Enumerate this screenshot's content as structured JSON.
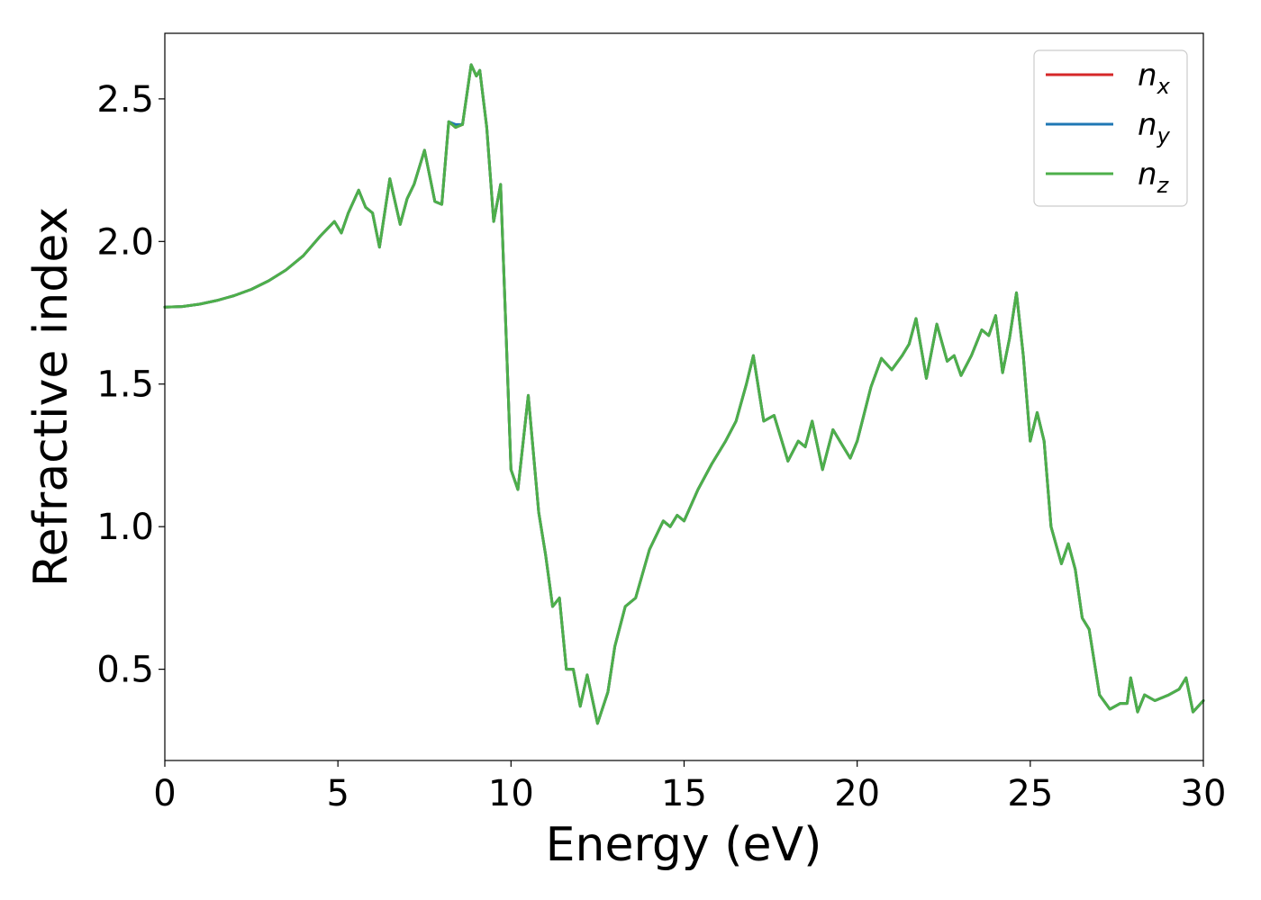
{
  "chart_data": {
    "type": "line",
    "xlabel": "Energy (eV)",
    "ylabel": "Refractive index",
    "xlim": [
      0,
      30
    ],
    "ylim": [
      0.18,
      2.73
    ],
    "xticks": [
      "0",
      "5",
      "10",
      "15",
      "20",
      "25",
      "30"
    ],
    "yticks": [
      "0.5",
      "1.0",
      "1.5",
      "2.0",
      "2.5"
    ],
    "grid": false,
    "legend_position": "top-right",
    "legend": [
      {
        "label": "n",
        "subscript": "x",
        "color": "#d62728"
      },
      {
        "label": "n",
        "subscript": "y",
        "color": "#1f77b4"
      },
      {
        "label": "n",
        "subscript": "z",
        "color": "#4daf4a"
      }
    ],
    "x": [
      0,
      0.5,
      1,
      1.5,
      2,
      2.5,
      3,
      3.5,
      4,
      4.5,
      4.9,
      5.1,
      5.3,
      5.6,
      5.8,
      6.0,
      6.2,
      6.5,
      6.8,
      7.0,
      7.2,
      7.5,
      7.8,
      8.0,
      8.2,
      8.4,
      8.6,
      8.85,
      9.0,
      9.1,
      9.3,
      9.5,
      9.7,
      9.85,
      10.0,
      10.2,
      10.5,
      10.8,
      11.0,
      11.2,
      11.4,
      11.6,
      11.8,
      12.0,
      12.2,
      12.5,
      12.8,
      13.0,
      13.3,
      13.6,
      14.0,
      14.4,
      14.6,
      14.8,
      15.0,
      15.4,
      15.8,
      16.2,
      16.5,
      16.8,
      17.0,
      17.3,
      17.6,
      18.0,
      18.3,
      18.5,
      18.7,
      19.0,
      19.3,
      19.6,
      19.8,
      20.0,
      20.4,
      20.7,
      21.0,
      21.3,
      21.5,
      21.7,
      22.0,
      22.3,
      22.6,
      22.8,
      23.0,
      23.3,
      23.6,
      23.8,
      24.0,
      24.2,
      24.4,
      24.6,
      24.8,
      25.0,
      25.2,
      25.4,
      25.6,
      25.9,
      26.1,
      26.3,
      26.5,
      26.7,
      27.0,
      27.3,
      27.6,
      27.8,
      27.9,
      28.1,
      28.3,
      28.6,
      29.0,
      29.3,
      29.5,
      29.7,
      30.0
    ],
    "series": [
      {
        "name": "n_x",
        "values": [
          1.77,
          1.772,
          1.78,
          1.793,
          1.81,
          1.832,
          1.862,
          1.9,
          1.95,
          2.02,
          2.07,
          2.03,
          2.1,
          2.18,
          2.12,
          2.1,
          1.98,
          2.22,
          2.06,
          2.15,
          2.2,
          2.32,
          2.14,
          2.13,
          2.42,
          2.4,
          2.41,
          2.62,
          2.58,
          2.6,
          2.4,
          2.07,
          2.2,
          1.7,
          1.2,
          1.13,
          1.46,
          1.05,
          0.9,
          0.72,
          0.75,
          0.5,
          0.5,
          0.37,
          0.48,
          0.31,
          0.42,
          0.58,
          0.72,
          0.75,
          0.92,
          1.02,
          1.0,
          1.04,
          1.02,
          1.13,
          1.22,
          1.3,
          1.37,
          1.5,
          1.6,
          1.37,
          1.39,
          1.23,
          1.3,
          1.28,
          1.37,
          1.2,
          1.34,
          1.28,
          1.24,
          1.3,
          1.49,
          1.59,
          1.55,
          1.6,
          1.64,
          1.73,
          1.52,
          1.71,
          1.58,
          1.6,
          1.53,
          1.6,
          1.69,
          1.67,
          1.74,
          1.54,
          1.66,
          1.82,
          1.6,
          1.3,
          1.4,
          1.3,
          1.0,
          0.87,
          0.94,
          0.85,
          0.68,
          0.64,
          0.41,
          0.36,
          0.38,
          0.38,
          0.47,
          0.35,
          0.41,
          0.39,
          0.41,
          0.43,
          0.47,
          0.35,
          0.39
        ]
      },
      {
        "name": "n_y",
        "values": [
          1.77,
          1.772,
          1.78,
          1.793,
          1.81,
          1.832,
          1.862,
          1.9,
          1.95,
          2.02,
          2.07,
          2.03,
          2.1,
          2.18,
          2.12,
          2.1,
          1.98,
          2.22,
          2.06,
          2.15,
          2.2,
          2.32,
          2.14,
          2.13,
          2.42,
          2.41,
          2.41,
          2.62,
          2.58,
          2.6,
          2.4,
          2.07,
          2.2,
          1.7,
          1.2,
          1.13,
          1.46,
          1.05,
          0.9,
          0.72,
          0.75,
          0.5,
          0.5,
          0.37,
          0.48,
          0.31,
          0.42,
          0.58,
          0.72,
          0.75,
          0.92,
          1.02,
          1.0,
          1.04,
          1.02,
          1.13,
          1.22,
          1.3,
          1.37,
          1.5,
          1.6,
          1.37,
          1.39,
          1.23,
          1.3,
          1.28,
          1.37,
          1.2,
          1.34,
          1.28,
          1.24,
          1.3,
          1.49,
          1.59,
          1.55,
          1.6,
          1.64,
          1.73,
          1.52,
          1.71,
          1.58,
          1.6,
          1.53,
          1.6,
          1.69,
          1.67,
          1.74,
          1.54,
          1.66,
          1.82,
          1.6,
          1.3,
          1.4,
          1.3,
          1.0,
          0.87,
          0.94,
          0.85,
          0.68,
          0.64,
          0.41,
          0.36,
          0.38,
          0.38,
          0.47,
          0.35,
          0.41,
          0.39,
          0.41,
          0.43,
          0.47,
          0.35,
          0.39
        ]
      },
      {
        "name": "n_z",
        "values": [
          1.77,
          1.772,
          1.78,
          1.793,
          1.81,
          1.832,
          1.862,
          1.9,
          1.95,
          2.02,
          2.07,
          2.03,
          2.1,
          2.18,
          2.12,
          2.1,
          1.98,
          2.22,
          2.06,
          2.15,
          2.2,
          2.32,
          2.14,
          2.13,
          2.42,
          2.4,
          2.41,
          2.62,
          2.58,
          2.6,
          2.4,
          2.07,
          2.2,
          1.7,
          1.2,
          1.13,
          1.46,
          1.05,
          0.9,
          0.72,
          0.75,
          0.5,
          0.5,
          0.37,
          0.48,
          0.31,
          0.42,
          0.58,
          0.72,
          0.75,
          0.92,
          1.02,
          1.0,
          1.04,
          1.02,
          1.13,
          1.22,
          1.3,
          1.37,
          1.5,
          1.6,
          1.37,
          1.39,
          1.23,
          1.3,
          1.28,
          1.37,
          1.2,
          1.34,
          1.28,
          1.24,
          1.3,
          1.49,
          1.59,
          1.55,
          1.6,
          1.64,
          1.73,
          1.52,
          1.71,
          1.58,
          1.6,
          1.53,
          1.6,
          1.69,
          1.67,
          1.74,
          1.54,
          1.66,
          1.82,
          1.6,
          1.3,
          1.4,
          1.3,
          1.0,
          0.87,
          0.94,
          0.85,
          0.68,
          0.64,
          0.41,
          0.36,
          0.38,
          0.38,
          0.47,
          0.35,
          0.41,
          0.39,
          0.41,
          0.43,
          0.47,
          0.35,
          0.39
        ]
      }
    ]
  }
}
